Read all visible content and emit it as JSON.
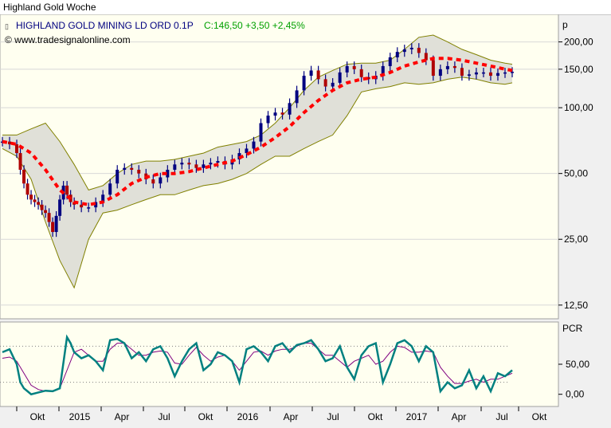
{
  "window": {
    "title": "Highland Gold Woche"
  },
  "chart_data": [
    {
      "type": "candlestick",
      "title": "HIGHLAND GOLD MINING LD ORD 0.1P",
      "quote": "C:146,50 +3,50 +2,45%",
      "credit": "© www.tradesignalonline.com",
      "y_unit": "p",
      "y_scale": "log",
      "ylim": [
        11,
        250
      ],
      "y_ticks": [
        {
          "value": 200,
          "label": "200,00"
        },
        {
          "value": 150,
          "label": "150,00"
        },
        {
          "value": 100,
          "label": "100,00"
        },
        {
          "value": 50,
          "label": "50,00"
        },
        {
          "value": 25,
          "label": "25,00"
        },
        {
          "value": 12.5,
          "label": "12,50"
        }
      ],
      "x_ticks": [
        "Okt",
        "2015",
        "Apr",
        "Jul",
        "Okt",
        "2016",
        "Apr",
        "Jul",
        "Okt",
        "2017",
        "Apr",
        "Jul",
        "Okt"
      ],
      "series": [
        {
          "kind": "price",
          "color": "#000080",
          "x": [
            0,
            2,
            4,
            5,
            6,
            7,
            8,
            9,
            10,
            11,
            12,
            13,
            14,
            15,
            16,
            17,
            18,
            19,
            20,
            22,
            24,
            26,
            28,
            30,
            32,
            34,
            36,
            38,
            40,
            42,
            44,
            46,
            48,
            50,
            52,
            54,
            56,
            58,
            60,
            62,
            64,
            66,
            68,
            70,
            72,
            74,
            76,
            78,
            80,
            82,
            84,
            86,
            88,
            90,
            92,
            94,
            96,
            98,
            100,
            102,
            104,
            106,
            108,
            110,
            112,
            114,
            116,
            118,
            120,
            122,
            124,
            126,
            128,
            130,
            132,
            134,
            136,
            138,
            140,
            142
          ],
          "values": [
            70,
            68,
            62,
            52,
            45,
            40,
            38,
            37,
            36,
            34,
            33,
            30,
            27,
            32,
            38,
            44,
            40,
            37,
            36,
            35,
            35,
            37,
            40,
            45,
            52,
            53,
            52,
            50,
            47,
            45,
            48,
            52,
            55,
            56,
            55,
            53,
            55,
            56,
            57,
            55,
            58,
            62,
            65,
            70,
            85,
            92,
            95,
            93,
            105,
            120,
            140,
            148,
            135,
            125,
            130,
            145,
            155,
            150,
            138,
            135,
            140,
            155,
            170,
            180,
            185,
            188,
            178,
            165,
            140,
            150,
            155,
            152,
            140,
            142,
            145,
            145,
            140,
            144,
            145,
            146
          ]
        },
        {
          "kind": "moving-average",
          "color": "#ff0000",
          "x": [
            0,
            4,
            8,
            12,
            16,
            20,
            24,
            28,
            32,
            36,
            40,
            44,
            48,
            52,
            56,
            60,
            64,
            68,
            72,
            76,
            80,
            84,
            88,
            92,
            96,
            100,
            104,
            108,
            112,
            116,
            120,
            124,
            128,
            132,
            136,
            140,
            142
          ],
          "values": [
            70,
            68,
            62,
            52,
            42,
            37,
            36,
            37,
            40,
            45,
            48,
            50,
            50,
            51,
            53,
            55,
            57,
            61,
            66,
            73,
            82,
            95,
            108,
            120,
            130,
            135,
            138,
            145,
            155,
            162,
            168,
            168,
            165,
            160,
            155,
            150,
            148
          ]
        },
        {
          "kind": "band-upper",
          "color": "#808000",
          "x": [
            0,
            4,
            8,
            12,
            16,
            20,
            24,
            28,
            32,
            36,
            40,
            44,
            48,
            52,
            56,
            60,
            64,
            68,
            72,
            76,
            80,
            84,
            88,
            92,
            96,
            100,
            104,
            108,
            112,
            116,
            120,
            124,
            128,
            132,
            136,
            140,
            142
          ],
          "values": [
            75,
            75,
            80,
            85,
            70,
            55,
            42,
            44,
            50,
            55,
            57,
            57,
            58,
            60,
            62,
            66,
            68,
            70,
            75,
            85,
            100,
            120,
            138,
            148,
            158,
            160,
            160,
            165,
            185,
            210,
            215,
            200,
            185,
            175,
            165,
            160,
            158
          ]
        },
        {
          "kind": "band-lower",
          "color": "#808000",
          "x": [
            0,
            4,
            8,
            12,
            16,
            20,
            24,
            28,
            32,
            36,
            40,
            44,
            48,
            52,
            56,
            60,
            64,
            68,
            72,
            76,
            80,
            84,
            88,
            92,
            96,
            100,
            104,
            108,
            112,
            116,
            120,
            124,
            128,
            132,
            136,
            140,
            142
          ],
          "values": [
            65,
            60,
            47,
            30,
            20,
            15,
            25,
            33,
            34,
            36,
            38,
            40,
            40,
            42,
            44,
            45,
            47,
            50,
            55,
            60,
            60,
            65,
            70,
            75,
            92,
            118,
            122,
            125,
            130,
            128,
            130,
            135,
            138,
            135,
            130,
            128,
            130
          ]
        }
      ]
    },
    {
      "type": "line",
      "title": "PCR",
      "ylim": [
        -15,
        115
      ],
      "y_ticks": [
        {
          "value": 50,
          "label": "50,00"
        },
        {
          "value": 0,
          "label": "0,00"
        }
      ],
      "reference_lines": [
        80,
        20
      ],
      "series": [
        {
          "kind": "pcr",
          "color": "#008080",
          "x": [
            0,
            2,
            4,
            5,
            6,
            7,
            8,
            10,
            12,
            14,
            16,
            18,
            19,
            20,
            22,
            24,
            26,
            28,
            30,
            32,
            34,
            36,
            38,
            40,
            42,
            44,
            46,
            48,
            50,
            52,
            54,
            56,
            58,
            60,
            62,
            64,
            66,
            68,
            70,
            72,
            74,
            76,
            78,
            80,
            82,
            84,
            86,
            88,
            90,
            92,
            94,
            96,
            98,
            100,
            102,
            104,
            106,
            108,
            110,
            112,
            114,
            116,
            118,
            120,
            122,
            124,
            126,
            128,
            130,
            132,
            134,
            136,
            138,
            140,
            142
          ],
          "values": [
            70,
            75,
            50,
            20,
            10,
            5,
            0,
            3,
            6,
            5,
            10,
            95,
            85,
            70,
            60,
            65,
            55,
            40,
            90,
            92,
            85,
            60,
            70,
            55,
            75,
            80,
            60,
            30,
            55,
            75,
            85,
            40,
            50,
            70,
            65,
            55,
            20,
            75,
            80,
            70,
            55,
            80,
            85,
            70,
            82,
            85,
            90,
            75,
            55,
            60,
            80,
            45,
            25,
            65,
            80,
            85,
            20,
            50,
            85,
            90,
            80,
            55,
            80,
            70,
            5,
            20,
            10,
            15,
            40,
            10,
            30,
            5,
            35,
            30,
            40
          ]
        },
        {
          "kind": "pcr-signal",
          "color": "#800080",
          "x": [
            0,
            2,
            4,
            6,
            8,
            10,
            12,
            14,
            16,
            18,
            20,
            22,
            24,
            26,
            28,
            30,
            32,
            34,
            36,
            38,
            40,
            42,
            44,
            46,
            48,
            50,
            52,
            54,
            56,
            58,
            60,
            62,
            64,
            66,
            68,
            70,
            72,
            74,
            76,
            78,
            80,
            82,
            84,
            86,
            88,
            90,
            92,
            94,
            96,
            98,
            100,
            102,
            104,
            106,
            108,
            110,
            112,
            114,
            116,
            118,
            120,
            122,
            124,
            126,
            128,
            130,
            132,
            134,
            136,
            138,
            140,
            142
          ],
          "values": [
            60,
            62,
            55,
            35,
            15,
            8,
            5,
            6,
            10,
            40,
            70,
            75,
            65,
            55,
            55,
            75,
            85,
            85,
            75,
            65,
            65,
            70,
            72,
            70,
            52,
            50,
            65,
            78,
            65,
            55,
            62,
            65,
            55,
            40,
            55,
            70,
            72,
            65,
            72,
            75,
            75,
            80,
            85,
            85,
            75,
            65,
            65,
            55,
            45,
            55,
            60,
            65,
            50,
            55,
            70,
            80,
            78,
            70,
            70,
            72,
            70,
            45,
            30,
            18,
            18,
            22,
            25,
            20,
            25,
            25,
            30,
            35
          ]
        }
      ]
    }
  ]
}
